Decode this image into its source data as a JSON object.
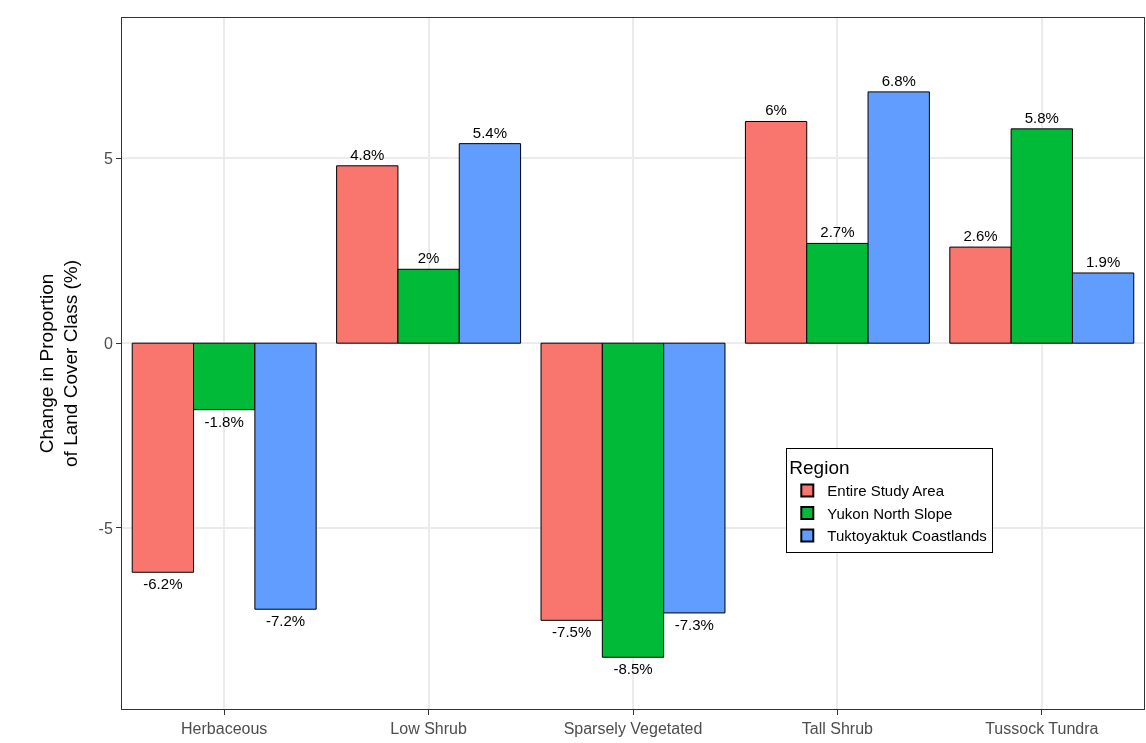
{
  "chart_data": {
    "type": "bar",
    "ylabel": "Change in Proportion\nof Land Cover Class (%)",
    "legend_title": "Region",
    "categories": [
      "Herbaceous",
      "Low Shrub",
      "Sparsely Vegetated",
      "Tall Shrub",
      "Tussock Tundra"
    ],
    "series": [
      {
        "name": "Entire Study Area",
        "color": "#f8766d",
        "values": [
          -6.2,
          4.8,
          -7.5,
          6,
          2.6
        ],
        "value_labels": [
          "-6.2%",
          "4.8%",
          "-7.5%",
          "6%",
          "2.6%"
        ]
      },
      {
        "name": "Yukon North Slope",
        "color": "#00ba38",
        "values": [
          -1.8,
          2,
          -8.5,
          2.7,
          5.8
        ],
        "value_labels": [
          "-1.8%",
          "2%",
          "-8.5%",
          "2.7%",
          "5.8%"
        ]
      },
      {
        "name": "Tuktoyaktuk Coastlands",
        "color": "#619cff",
        "values": [
          -7.2,
          5.4,
          -7.3,
          6.8,
          1.9
        ],
        "value_labels": [
          "-7.2%",
          "5.4%",
          "-7.3%",
          "6.8%",
          "1.9%"
        ]
      }
    ],
    "ylim": [
      -9.9,
      8.8
    ],
    "yticks": [
      -5,
      0,
      5
    ],
    "grid": true,
    "legend": "bottom right"
  }
}
